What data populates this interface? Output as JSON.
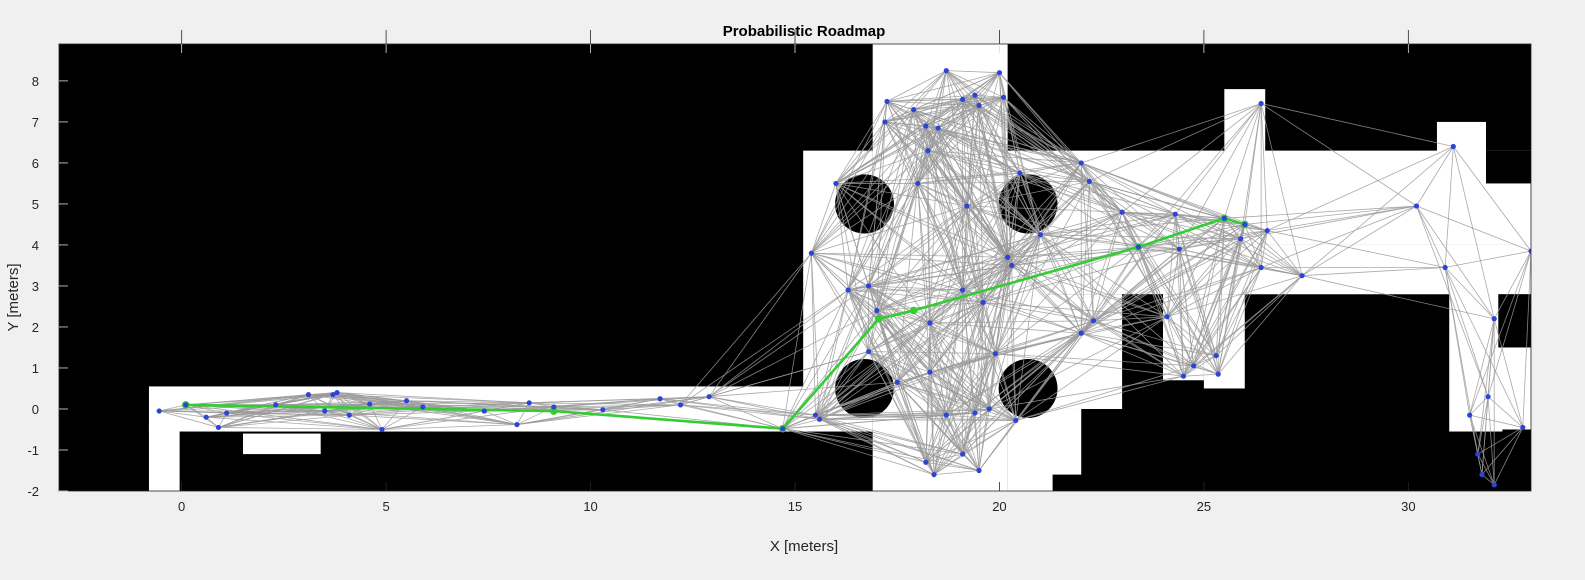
{
  "chart_data": {
    "type": "scatter",
    "title": "Probabilistic Roadmap",
    "xlabel": "X [meters]",
    "ylabel": "Y [meters]",
    "xlim": [
      -3,
      33
    ],
    "ylim": [
      -2,
      8.9
    ],
    "xticks": [
      0,
      5,
      10,
      15,
      20,
      25,
      30
    ],
    "yticks": [
      -2,
      -1,
      0,
      1,
      2,
      3,
      4,
      5,
      6,
      7,
      8
    ],
    "grid": false,
    "colors": {
      "background": "#000000",
      "free_space": "#ffffff",
      "edge": "#9a9a9a",
      "node": "#2c45d8",
      "path": "#33cc33",
      "axis": "#262626"
    },
    "free_space": {
      "rects": [
        [
          -0.8,
          -0.55,
          15.5,
          0.55
        ],
        [
          -0.8,
          -2,
          -0.05,
          -0.35
        ],
        [
          1.5,
          -1.1,
          3.4,
          -0.6
        ],
        [
          15.2,
          -0.55,
          16.9,
          6.3
        ],
        [
          16.9,
          -2,
          20.2,
          8.9
        ],
        [
          20.2,
          4.0,
          33,
          6.3
        ],
        [
          20.2,
          0.3,
          21.2,
          4.0
        ],
        [
          20.2,
          -2,
          21.3,
          0.3
        ],
        [
          21.2,
          2.8,
          33,
          4.0
        ],
        [
          21.2,
          0.0,
          23.0,
          2.8
        ],
        [
          21.2,
          -1.6,
          22.0,
          0.0
        ],
        [
          24.0,
          0.7,
          25.0,
          2.8
        ],
        [
          25.0,
          0.5,
          26.0,
          2.8
        ],
        [
          26.0,
          2.8,
          31.2,
          3.0
        ],
        [
          31.0,
          -2,
          33,
          3.0
        ],
        [
          25.5,
          6.1,
          26.5,
          7.8
        ],
        [
          30.7,
          6.1,
          31.9,
          7.0
        ]
      ],
      "holes": [
        [
          16.7,
          5.0,
          0.72
        ],
        [
          20.7,
          5.0,
          0.72
        ],
        [
          16.7,
          0.5,
          0.72
        ],
        [
          20.7,
          0.5,
          0.72
        ]
      ],
      "solid_rects": [
        [
          22.2,
          -2,
          33,
          -0.55
        ],
        [
          26.3,
          0.0,
          30.8,
          2.75
        ],
        [
          31.9,
          5.5,
          33,
          6.3
        ],
        [
          32.2,
          1.5,
          33,
          2.8
        ],
        [
          32.3,
          -2,
          33,
          -0.5
        ]
      ]
    },
    "nodes": [
      [
        -0.55,
        -0.05
      ],
      [
        0.1,
        0.1
      ],
      [
        0.6,
        -0.2
      ],
      [
        0.9,
        -0.45
      ],
      [
        1.1,
        -0.1
      ],
      [
        2.3,
        0.1
      ],
      [
        3.1,
        0.35
      ],
      [
        3.5,
        -0.05
      ],
      [
        3.8,
        0.4
      ],
      [
        3.7,
        0.35
      ],
      [
        4.1,
        -0.15
      ],
      [
        4.6,
        0.12
      ],
      [
        4.9,
        -0.5
      ],
      [
        5.5,
        0.2
      ],
      [
        5.9,
        0.05
      ],
      [
        7.4,
        -0.05
      ],
      [
        8.2,
        -0.38
      ],
      [
        8.5,
        0.15
      ],
      [
        9.1,
        0.05
      ],
      [
        10.3,
        -0.02
      ],
      [
        11.7,
        0.25
      ],
      [
        12.2,
        0.1
      ],
      [
        12.9,
        0.3
      ],
      [
        14.7,
        -0.48
      ],
      [
        15.5,
        -0.15
      ],
      [
        15.6,
        -0.25
      ],
      [
        15.4,
        3.8
      ],
      [
        16.0,
        5.5
      ],
      [
        16.3,
        2.9
      ],
      [
        16.8,
        3.0
      ],
      [
        17.0,
        2.4
      ],
      [
        16.8,
        1.4
      ],
      [
        17.2,
        7.0
      ],
      [
        17.25,
        7.5
      ],
      [
        17.5,
        0.65
      ],
      [
        17.9,
        7.3
      ],
      [
        18.2,
        6.9
      ],
      [
        18.5,
        6.85
      ],
      [
        18.25,
        6.3
      ],
      [
        18.7,
        8.25
      ],
      [
        19.1,
        7.55
      ],
      [
        19.4,
        7.65
      ],
      [
        19.5,
        7.4
      ],
      [
        20.0,
        8.2
      ],
      [
        20.1,
        7.6
      ],
      [
        18.0,
        5.5
      ],
      [
        19.2,
        4.95
      ],
      [
        20.5,
        5.75
      ],
      [
        20.2,
        3.7
      ],
      [
        20.3,
        3.5
      ],
      [
        21.0,
        4.25
      ],
      [
        19.6,
        2.6
      ],
      [
        19.1,
        2.9
      ],
      [
        18.3,
        2.1
      ],
      [
        19.9,
        1.35
      ],
      [
        18.3,
        0.9
      ],
      [
        18.7,
        -0.15
      ],
      [
        19.4,
        -0.1
      ],
      [
        19.75,
        0.0
      ],
      [
        20.4,
        -0.28
      ],
      [
        18.2,
        -1.3
      ],
      [
        18.4,
        -1.6
      ],
      [
        19.1,
        -1.1
      ],
      [
        19.5,
        -1.5
      ],
      [
        22.0,
        6.0
      ],
      [
        22.2,
        5.55
      ],
      [
        22.3,
        2.15
      ],
      [
        22.0,
        1.85
      ],
      [
        23.0,
        4.8
      ],
      [
        23.4,
        3.95
      ],
      [
        24.3,
        4.75
      ],
      [
        24.4,
        3.9
      ],
      [
        24.1,
        2.25
      ],
      [
        24.5,
        0.8
      ],
      [
        24.75,
        1.05
      ],
      [
        25.3,
        1.3
      ],
      [
        25.35,
        0.85
      ],
      [
        25.5,
        4.65
      ],
      [
        25.9,
        4.15
      ],
      [
        26.0,
        4.5
      ],
      [
        26.4,
        3.45
      ],
      [
        26.55,
        4.35
      ],
      [
        27.4,
        3.25
      ],
      [
        26.4,
        7.45
      ],
      [
        31.1,
        6.4
      ],
      [
        30.2,
        4.95
      ],
      [
        30.9,
        3.45
      ],
      [
        32.1,
        2.2
      ],
      [
        31.5,
        -0.15
      ],
      [
        31.7,
        -1.1
      ],
      [
        31.95,
        0.3
      ],
      [
        31.8,
        -1.6
      ],
      [
        32.1,
        -1.85
      ],
      [
        32.8,
        -0.45
      ],
      [
        33.0,
        3.85
      ]
    ],
    "path": [
      [
        0.1,
        0.1
      ],
      [
        9.1,
        -0.05
      ],
      [
        14.7,
        -0.48
      ],
      [
        17.05,
        2.2
      ],
      [
        17.9,
        2.4
      ],
      [
        23.4,
        3.95
      ],
      [
        25.5,
        4.65
      ],
      [
        26.0,
        4.5
      ]
    ]
  }
}
